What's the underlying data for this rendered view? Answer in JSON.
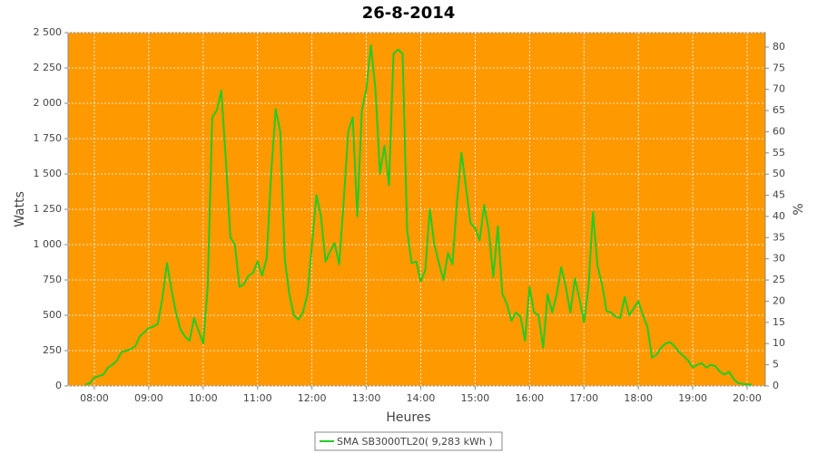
{
  "chart_data": {
    "type": "line",
    "title": "26-8-2014",
    "x_label": "Heures",
    "y_label": "Watts",
    "y2_label": "%",
    "plot_color": "#ff9900",
    "grid": true,
    "legend": "bottom",
    "xlim": [
      "07:31",
      "20:20"
    ],
    "xticks": [
      "08:00",
      "09:00",
      "10:00",
      "11:00",
      "12:00",
      "13:00",
      "14:00",
      "15:00",
      "16:00",
      "17:00",
      "18:00",
      "19:00",
      "20:00"
    ],
    "ylim": [
      0,
      2500
    ],
    "yticks": [
      0,
      250,
      500,
      750,
      {
        "value": 1000,
        "label": "1 000"
      },
      {
        "value": 1250,
        "label": "1 250"
      },
      {
        "value": 1500,
        "label": "1 500"
      },
      {
        "value": 1750,
        "label": "1 750"
      },
      {
        "value": 2000,
        "label": "2 000"
      },
      {
        "value": 2250,
        "label": "2 250"
      },
      {
        "value": 2500,
        "label": "2 500"
      }
    ],
    "y2lim": [
      0,
      83.4
    ],
    "y2ticks": [
      0,
      5,
      10,
      15,
      20,
      25,
      30,
      35,
      40,
      45,
      50,
      55,
      60,
      65,
      70,
      75,
      80
    ],
    "x": [
      "07:50",
      "07:55",
      "08:00",
      "08:05",
      "08:10",
      "08:15",
      "08:20",
      "08:25",
      "08:30",
      "08:35",
      "08:40",
      "08:45",
      "08:50",
      "08:55",
      "09:00",
      "09:05",
      "09:10",
      "09:15",
      "09:20",
      "09:25",
      "09:30",
      "09:35",
      "09:40",
      "09:45",
      "09:50",
      "09:55",
      "10:00",
      "10:05",
      "10:10",
      "10:15",
      "10:20",
      "10:25",
      "10:30",
      "10:35",
      "10:40",
      "10:45",
      "10:50",
      "10:55",
      "11:00",
      "11:05",
      "11:10",
      "11:15",
      "11:20",
      "11:25",
      "11:30",
      "11:35",
      "11:40",
      "11:45",
      "11:50",
      "11:55",
      "12:00",
      "12:05",
      "12:10",
      "12:15",
      "12:20",
      "12:25",
      "12:30",
      "12:35",
      "12:40",
      "12:45",
      "12:50",
      "12:55",
      "13:00",
      "13:05",
      "13:10",
      "13:15",
      "13:20",
      "13:25",
      "13:30",
      "13:35",
      "13:40",
      "13:45",
      "13:50",
      "13:55",
      "14:00",
      "14:05",
      "14:10",
      "14:15",
      "14:20",
      "14:25",
      "14:30",
      "14:35",
      "14:40",
      "14:45",
      "14:50",
      "14:55",
      "15:00",
      "15:05",
      "15:10",
      "15:15",
      "15:20",
      "15:25",
      "15:30",
      "15:35",
      "15:40",
      "15:45",
      "15:50",
      "15:55",
      "16:00",
      "16:05",
      "16:10",
      "16:15",
      "16:20",
      "16:25",
      "16:30",
      "16:35",
      "16:40",
      "16:45",
      "16:50",
      "16:55",
      "17:00",
      "17:05",
      "17:10",
      "17:15",
      "17:20",
      "17:25",
      "17:30",
      "17:35",
      "17:40",
      "17:45",
      "17:50",
      "17:55",
      "18:00",
      "18:05",
      "18:10",
      "18:15",
      "18:20",
      "18:25",
      "18:30",
      "18:35",
      "18:40",
      "18:45",
      "18:50",
      "18:55",
      "19:00",
      "19:05",
      "19:10",
      "19:15",
      "19:20",
      "19:25",
      "19:30",
      "19:35",
      "19:40",
      "19:45",
      "19:50",
      "19:55",
      "20:00",
      "20:05"
    ],
    "series": [
      {
        "name": "SMA SB3000TL20( 9,283 kWh )",
        "color": "#22cc22",
        "values": [
          10,
          20,
          60,
          70,
          80,
          130,
          150,
          180,
          240,
          250,
          260,
          280,
          350,
          380,
          410,
          420,
          440,
          620,
          870,
          680,
          520,
          400,
          350,
          320,
          480,
          390,
          300,
          700,
          1900,
          1950,
          2090,
          1600,
          1050,
          1000,
          700,
          720,
          780,
          800,
          880,
          780,
          900,
          1500,
          1960,
          1800,
          900,
          650,
          500,
          470,
          520,
          650,
          1000,
          1350,
          1200,
          880,
          950,
          1010,
          860,
          1300,
          1800,
          1900,
          1200,
          1950,
          2100,
          2410,
          2100,
          1500,
          1700,
          1420,
          2350,
          2380,
          2350,
          1100,
          870,
          880,
          740,
          820,
          1250,
          1000,
          870,
          750,
          940,
          860,
          1300,
          1650,
          1400,
          1150,
          1120,
          1030,
          1280,
          1100,
          770,
          1130,
          650,
          580,
          460,
          520,
          490,
          320,
          700,
          520,
          500,
          270,
          650,
          520,
          650,
          840,
          700,
          520,
          760,
          620,
          450,
          700,
          1230,
          850,
          720,
          530,
          520,
          490,
          480,
          630,
          500,
          550,
          600,
          500,
          420,
          200,
          220,
          270,
          300,
          310,
          280,
          240,
          210,
          180,
          130,
          150,
          160,
          130,
          150,
          140,
          100,
          80,
          100,
          50,
          20,
          15,
          10,
          10
        ]
      }
    ]
  }
}
